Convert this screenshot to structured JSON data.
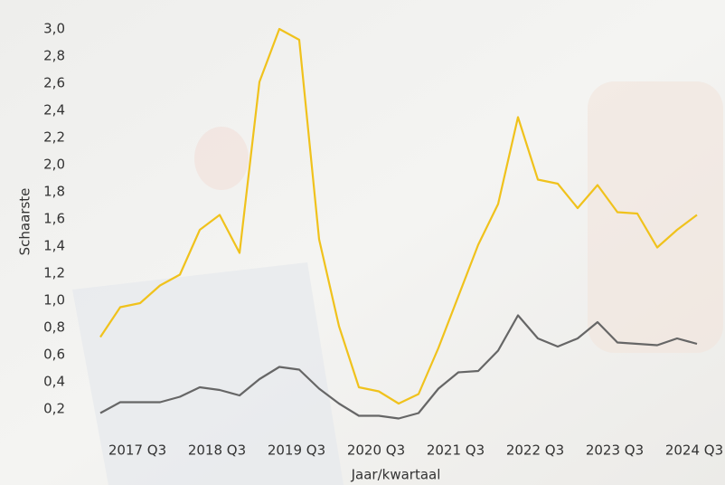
{
  "chart_data": {
    "type": "line",
    "y_label": "Schaarste",
    "x_label": "Jaar/kwartaal",
    "categories": [
      null,
      null,
      "2017 Q3",
      null,
      null,
      null,
      "2018 Q3",
      null,
      null,
      null,
      "2019 Q3",
      null,
      null,
      null,
      "2020 Q3",
      null,
      null,
      null,
      "2021 Q3",
      null,
      null,
      null,
      "2022 Q3",
      null,
      null,
      null,
      "2023 Q3",
      null,
      null,
      null,
      "2024 Q3"
    ],
    "series": [
      {
        "color": "#f0c21c",
        "values": [
          0.73,
          0.95,
          0.98,
          1.11,
          1.19,
          1.52,
          1.63,
          1.35,
          2.61,
          3.0,
          2.92,
          1.45,
          0.81,
          0.36,
          0.33,
          0.24,
          0.31,
          0.65,
          1.03,
          1.41,
          1.71,
          2.35,
          1.89,
          1.86,
          1.68,
          1.85,
          1.65,
          1.64,
          1.39,
          1.52,
          1.63
        ]
      },
      {
        "color": "#666666",
        "values": [
          0.17,
          0.25,
          0.25,
          0.25,
          0.29,
          0.36,
          0.34,
          0.3,
          0.42,
          0.51,
          0.49,
          0.35,
          0.24,
          0.15,
          0.15,
          0.13,
          0.17,
          0.35,
          0.47,
          0.48,
          0.63,
          0.89,
          0.72,
          0.66,
          0.72,
          0.84,
          0.69,
          0.68,
          0.67,
          0.72,
          0.68
        ]
      }
    ],
    "ylim": [
      0,
      3.0
    ],
    "yticks": [
      {
        "value": 0.2,
        "label": "0,2"
      },
      {
        "value": 0.4,
        "label": "0,4"
      },
      {
        "value": 0.6,
        "label": "0,6"
      },
      {
        "value": 0.8,
        "label": "0,8"
      },
      {
        "value": 1.0,
        "label": "1,0"
      },
      {
        "value": 1.2,
        "label": "1,2"
      },
      {
        "value": 1.4,
        "label": "1,4"
      },
      {
        "value": 1.6,
        "label": "1,6"
      },
      {
        "value": 1.8,
        "label": "1,8"
      },
      {
        "value": 2.0,
        "label": "2,0"
      },
      {
        "value": 2.2,
        "label": "2,2"
      },
      {
        "value": 2.4,
        "label": "2,4"
      },
      {
        "value": 2.6,
        "label": "2,6"
      },
      {
        "value": 2.8,
        "label": "2,8"
      },
      {
        "value": 3.0,
        "label": "3,0"
      }
    ],
    "grid": false
  }
}
